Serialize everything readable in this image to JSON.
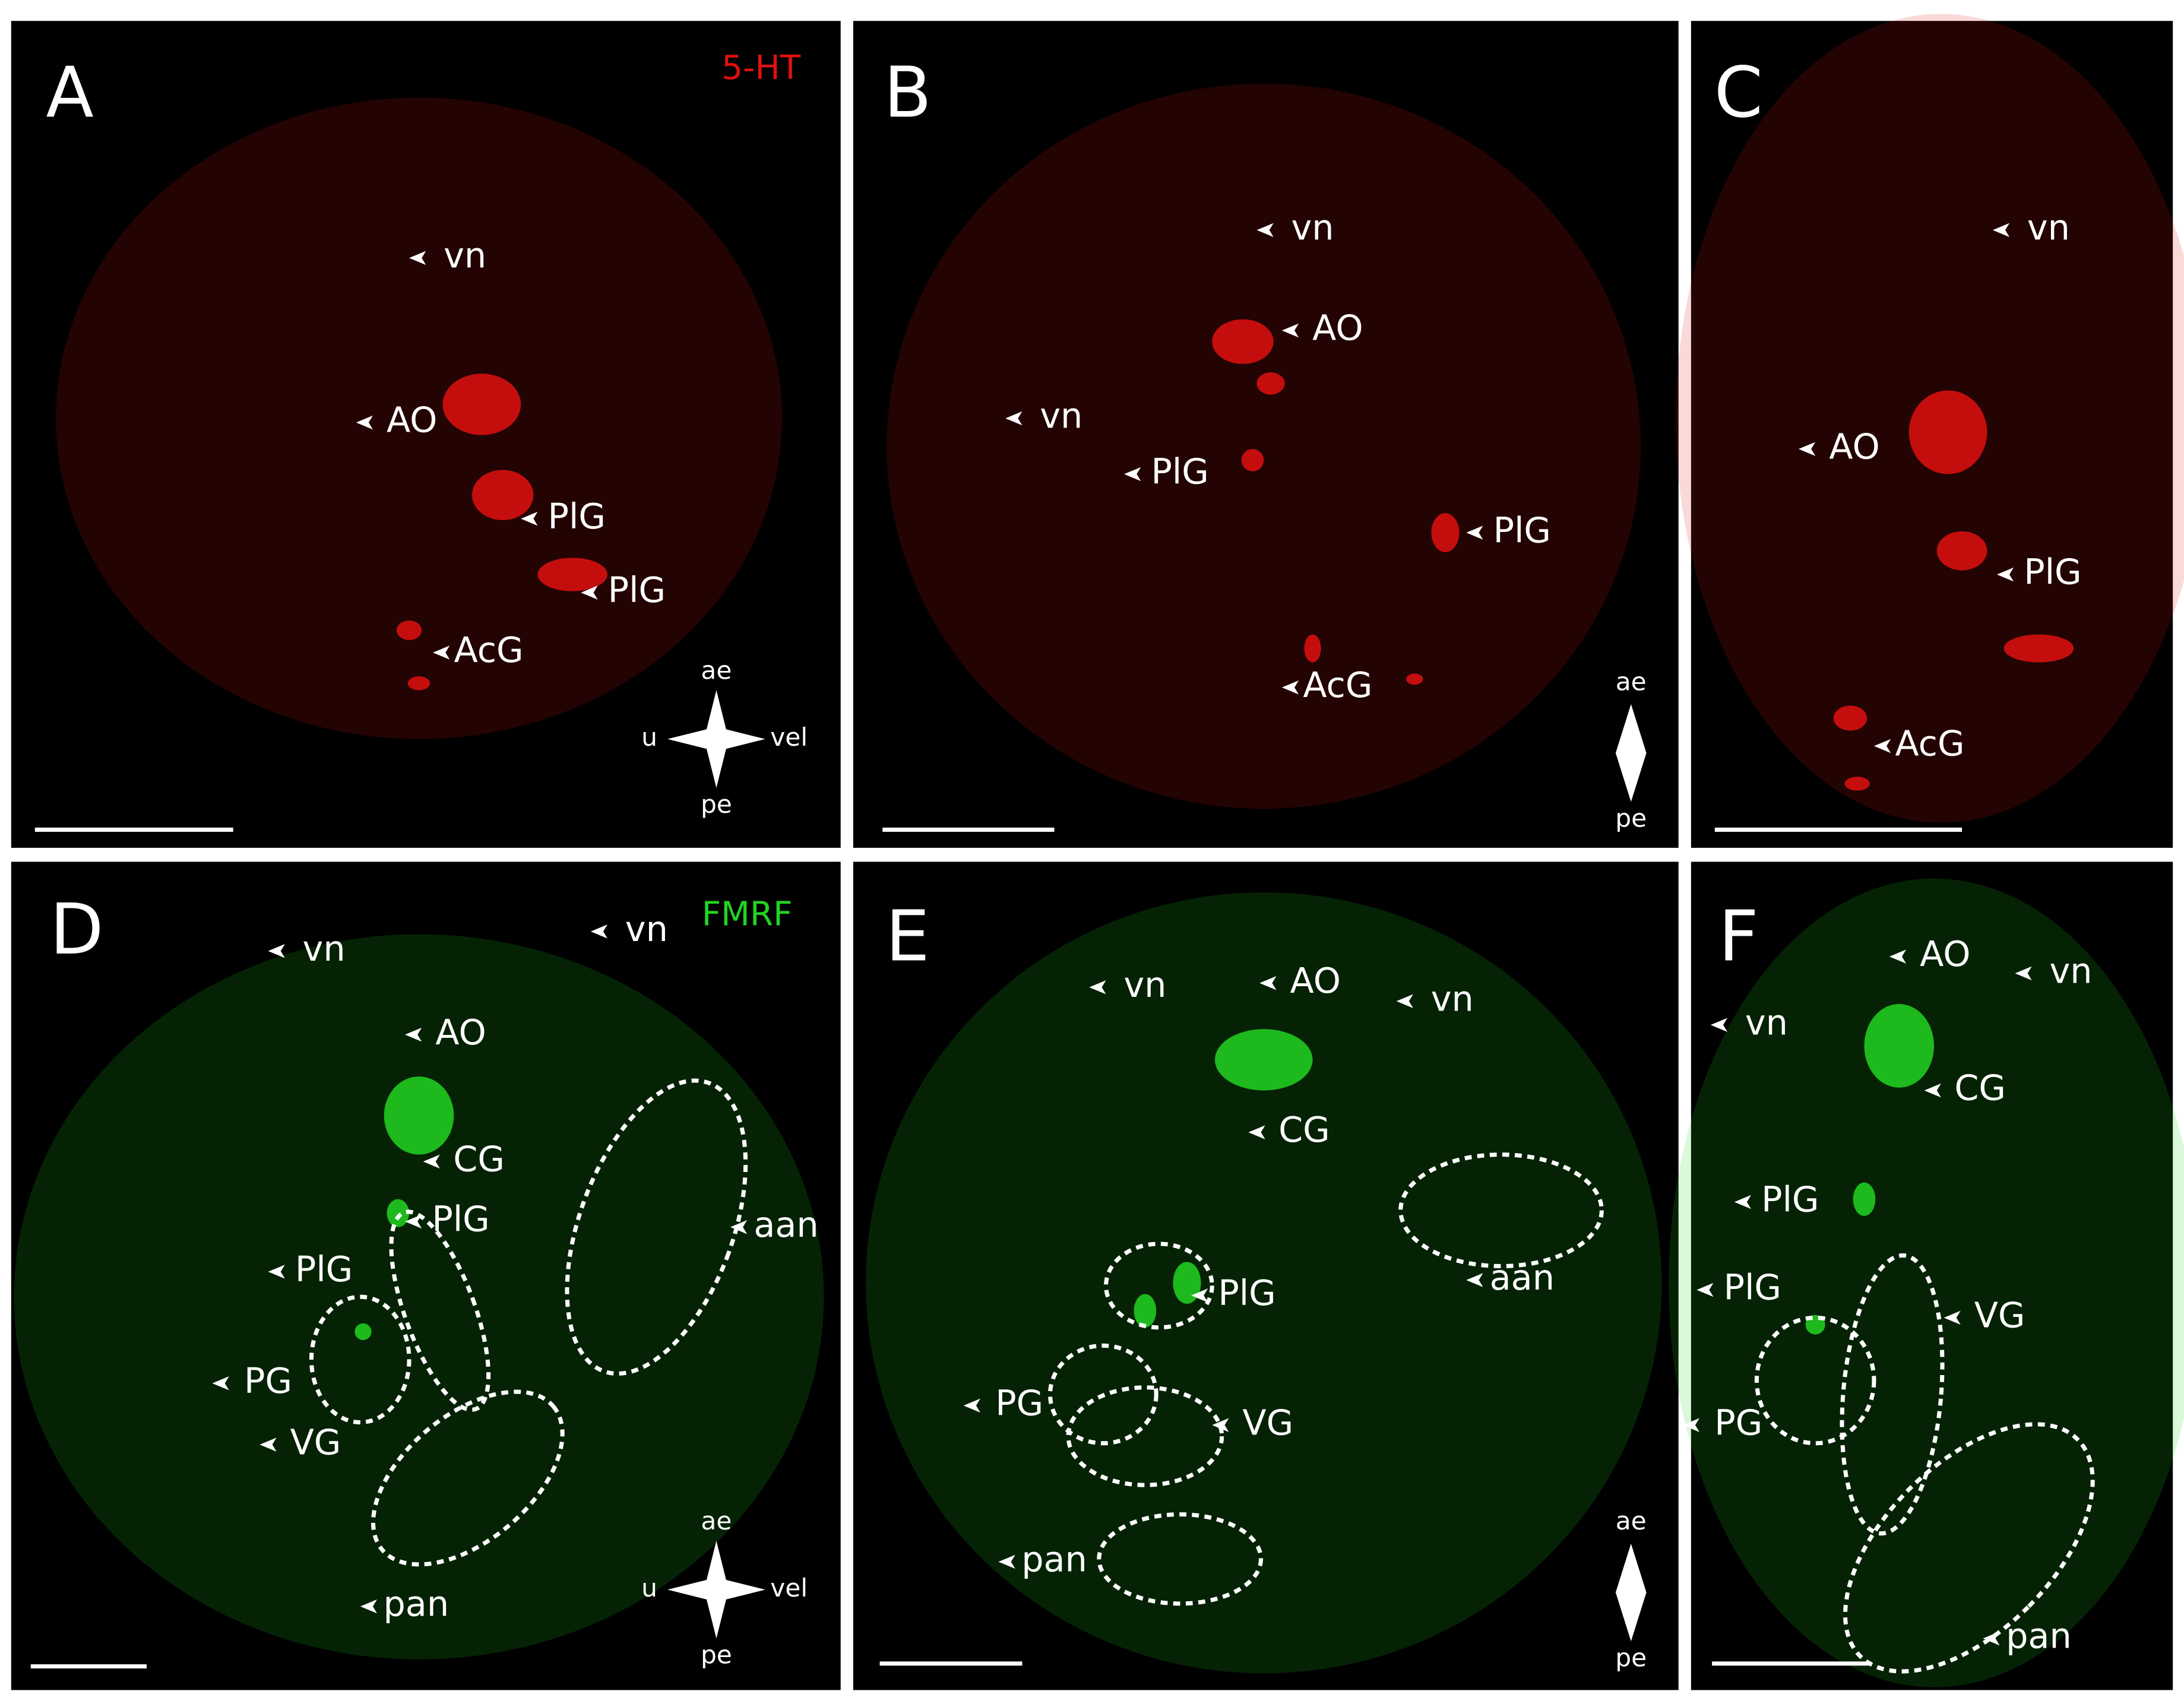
{
  "panels": [
    {
      "letter": "A",
      "stain": "5-HT",
      "labels": [
        "vn",
        "AO",
        "PlG",
        "PlG",
        "AcG"
      ],
      "compass": [
        "ae",
        "u",
        "vel",
        "pe"
      ]
    },
    {
      "letter": "B",
      "labels": [
        "vn",
        "AO",
        "vn",
        "PlG",
        "PlG",
        "AcG"
      ],
      "compass": [
        "ae",
        "pe"
      ]
    },
    {
      "letter": "C",
      "labels": [
        "vn",
        "AO",
        "PlG",
        "AcG"
      ]
    },
    {
      "letter": "D",
      "stain": "FMRF",
      "labels": [
        "vn",
        "vn",
        "AO",
        "CG",
        "PlG",
        "PlG",
        "PG",
        "VG",
        "aan",
        "pan"
      ],
      "compass": [
        "ae",
        "u",
        "vel",
        "pe"
      ]
    },
    {
      "letter": "E",
      "labels": [
        "vn",
        "AO",
        "vn",
        "CG",
        "aan",
        "PlG",
        "PG",
        "VG",
        "pan"
      ],
      "compass": [
        "ae",
        "pe"
      ]
    },
    {
      "letter": "F",
      "labels": [
        "AO",
        "vn",
        "vn",
        "CG",
        "PlG",
        "PlG",
        "VG",
        "PG",
        "pan"
      ]
    }
  ]
}
